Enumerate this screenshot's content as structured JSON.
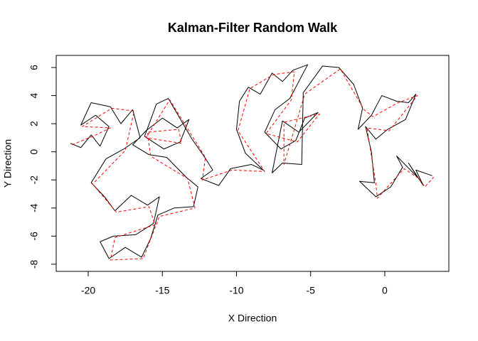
{
  "chart_data": {
    "type": "line",
    "title": "Kalman-Filter Random Walk",
    "x_label": "X Direction",
    "y_label": "Y Direction",
    "xlim": [
      -22.16,
      4.32
    ],
    "ylim": [
      -8.51,
      6.86
    ],
    "xticks": [
      -20,
      -15,
      -10,
      -5,
      0
    ],
    "yticks": [
      -8,
      -6,
      -4,
      -2,
      0,
      2,
      4,
      6
    ],
    "series": [
      {
        "color": "#000000",
        "dash": false,
        "x": [
          -21.2,
          -20.5,
          -19.8,
          -19.2,
          -18.6,
          -19.5,
          -20.5,
          -19.8,
          -18.5,
          -17.8,
          -17.0,
          -16.5,
          -17.6,
          -18.8,
          -19.8,
          -18.9,
          -18.2,
          -17.1,
          -16.0,
          -15.2,
          -15.6,
          -16.8,
          -18.3,
          -19.2,
          -18.6,
          -17.5,
          -16.4,
          -15.8,
          -15.3,
          -14.2,
          -12.9,
          -12.6,
          -13.4,
          -14.7,
          -15.9,
          -17.0,
          -16.1,
          -15.0,
          -14.0,
          -13.2,
          -13.8,
          -14.9,
          -16.2,
          -15.4,
          -14.6,
          -13.0,
          -12.2,
          -11.6,
          -12.4,
          -11.2,
          -10.4,
          -9.0,
          -8.2,
          -9.4,
          -10.0,
          -9.8,
          -9.2,
          -8.4,
          -7.6,
          -6.9,
          -6.2,
          -5.2,
          -6.4,
          -7.4,
          -8.1,
          -7.0,
          -6.0,
          -5.4,
          -4.5,
          -5.8,
          -6.9,
          -7.6,
          -6.9,
          -5.6,
          -5.5,
          -4.2,
          -3.1,
          -2.1,
          -1.5,
          -1.8,
          -0.9,
          -0.2,
          0.8,
          1.6,
          2.1,
          1.4,
          0.2,
          -0.6,
          -1.3,
          -0.9,
          -0.7,
          -1.7,
          -0.6,
          0.4,
          1.2,
          0.8,
          2.2,
          1.6,
          2.6,
          2.1,
          3.2
        ],
        "values": [
          0.6,
          0.3,
          1.2,
          0.4,
          1.8,
          2.6,
          1.9,
          3.5,
          3.2,
          2.0,
          3.0,
          1.0,
          0.2,
          -0.5,
          -2.2,
          -3.2,
          -4.2,
          -3.1,
          -3.8,
          -3.2,
          -5.1,
          -5.9,
          -6.0,
          -6.4,
          -7.6,
          -6.8,
          -7.5,
          -6.2,
          -4.5,
          -4.0,
          -3.9,
          -2.5,
          -1.8,
          -0.4,
          -0.2,
          0.5,
          1.5,
          2.4,
          1.7,
          2.3,
          0.7,
          0.2,
          1.1,
          3.4,
          3.8,
          0.9,
          -0.3,
          -1.3,
          -1.9,
          -2.4,
          -1.2,
          -0.9,
          -1.3,
          -0.1,
          1.6,
          3.6,
          4.6,
          4.1,
          5.6,
          5.0,
          5.8,
          6.2,
          3.8,
          3.0,
          1.4,
          0.2,
          0.8,
          2.4,
          2.8,
          1.4,
          2.2,
          -1.5,
          -0.8,
          -0.9,
          4.2,
          6.1,
          6.0,
          4.8,
          3.1,
          1.6,
          2.6,
          4.0,
          3.6,
          3.5,
          4.1,
          2.3,
          1.6,
          0.9,
          1.8,
          0.0,
          -2.2,
          -2.1,
          -3.2,
          -2.5,
          -1.1,
          -0.3,
          -1.8,
          -0.8,
          -2.4,
          -1.3,
          -1.7
        ]
      },
      {
        "color": "#ff0000",
        "dash": true,
        "x": [
          -21.1,
          -19.7,
          -18.5,
          -20.4,
          -18.4,
          -16.9,
          -17.5,
          -19.7,
          -18.1,
          -15.9,
          -15.5,
          -18.2,
          -18.5,
          -16.3,
          -15.2,
          -12.8,
          -13.3,
          -15.8,
          -16.0,
          -13.9,
          -13.7,
          -16.1,
          -14.5,
          -12.1,
          -12.3,
          -10.3,
          -8.1,
          -9.9,
          -9.1,
          -7.5,
          -6.1,
          -6.3,
          -8.0,
          -5.9,
          -4.4,
          -6.8,
          -6.8,
          -5.4,
          -3.0,
          -1.4,
          -0.8,
          0.9,
          2.2,
          0.3,
          -1.2,
          -0.6,
          -0.5,
          1.3,
          2.3,
          2.7,
          3.3
        ],
        "values": [
          0.5,
          1.1,
          1.7,
          1.8,
          3.1,
          2.9,
          0.1,
          -2.3,
          -4.3,
          -3.9,
          -5.2,
          -6.1,
          -7.7,
          -7.6,
          -4.6,
          -4.0,
          -1.9,
          -0.3,
          1.4,
          1.6,
          0.6,
          1.0,
          3.7,
          -0.4,
          -2.0,
          -1.3,
          -1.4,
          1.5,
          4.5,
          5.5,
          5.7,
          3.7,
          1.3,
          0.7,
          2.7,
          2.1,
          -0.9,
          4.1,
          5.9,
          3.0,
          2.5,
          3.5,
          4.0,
          1.5,
          1.7,
          -2.3,
          -3.3,
          -1.2,
          -1.9,
          -2.5,
          -1.8
        ]
      }
    ]
  }
}
